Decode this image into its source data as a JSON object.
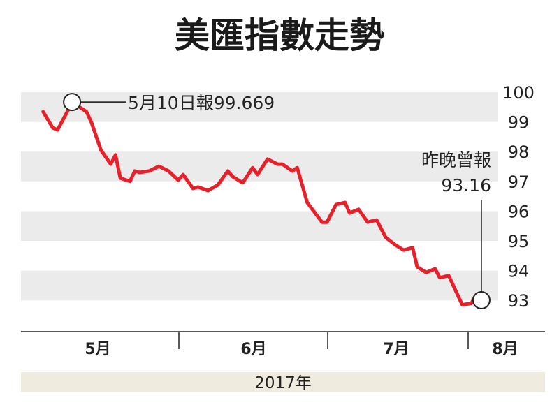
{
  "chart_data": {
    "type": "line",
    "title": "美匯指數走勢",
    "xlabel": "2017年",
    "ylabel": "",
    "ylim": [
      92.5,
      100.2
    ],
    "yticks": [
      100,
      99,
      98,
      97,
      96,
      95,
      94,
      93
    ],
    "y_axis_side": "right",
    "grid": "alternating horizontal bands",
    "x_ticks": [
      "5月",
      "6月",
      "7月",
      "8月"
    ],
    "year_label": "2017年",
    "series_color": "#e8202a",
    "band_color": "#ebebeb",
    "year_band_color": "#efebdf",
    "series": [
      {
        "x": [
          "2017-05-04",
          "2017-05-06",
          "2017-05-07",
          "2017-05-09",
          "2017-05-10",
          "2017-05-13",
          "2017-05-14",
          "2017-05-16",
          "2017-05-18",
          "2017-05-19",
          "2017-05-20",
          "2017-05-22",
          "2017-05-23",
          "2017-05-24",
          "2017-05-26",
          "2017-05-28",
          "2017-05-30",
          "2017-06-01",
          "2017-06-02",
          "2017-06-04",
          "2017-06-05",
          "2017-06-07",
          "2017-06-09",
          "2017-06-11",
          "2017-06-12",
          "2017-06-14",
          "2017-06-16",
          "2017-06-17",
          "2017-06-19",
          "2017-06-21",
          "2017-06-22",
          "2017-06-24",
          "2017-06-25",
          "2017-06-27",
          "2017-06-30",
          "2017-07-01",
          "2017-07-03",
          "2017-07-05",
          "2017-07-06",
          "2017-07-08",
          "2017-07-10",
          "2017-07-12",
          "2017-07-14",
          "2017-07-16",
          "2017-07-18",
          "2017-07-20",
          "2017-07-21",
          "2017-07-23",
          "2017-07-25",
          "2017-07-26",
          "2017-07-28",
          "2017-07-31",
          "2017-08-02",
          "2017-08-03"
        ],
        "values": [
          99.34,
          98.8,
          98.73,
          99.34,
          99.669,
          99.34,
          98.99,
          98.05,
          97.58,
          97.89,
          97.11,
          97.0,
          97.35,
          97.3,
          97.35,
          97.51,
          97.35,
          97.04,
          97.23,
          96.76,
          96.81,
          96.69,
          96.88,
          97.35,
          97.16,
          96.95,
          97.46,
          97.23,
          97.75,
          97.58,
          97.58,
          97.35,
          97.46,
          96.29,
          95.63,
          95.63,
          96.22,
          96.29,
          95.94,
          96.06,
          95.63,
          95.7,
          95.12,
          94.88,
          94.69,
          94.77,
          94.13,
          93.94,
          94.06,
          93.76,
          93.83,
          92.85,
          92.9,
          93.16
        ]
      }
    ],
    "annotations": [
      {
        "text": "5月10日報99.669",
        "date": "2017-05-10",
        "value": 99.669
      },
      {
        "text_line1": "昨晚曾報",
        "text_line2": "93.16",
        "date": "2017-08-03",
        "value": 93.16
      }
    ]
  }
}
